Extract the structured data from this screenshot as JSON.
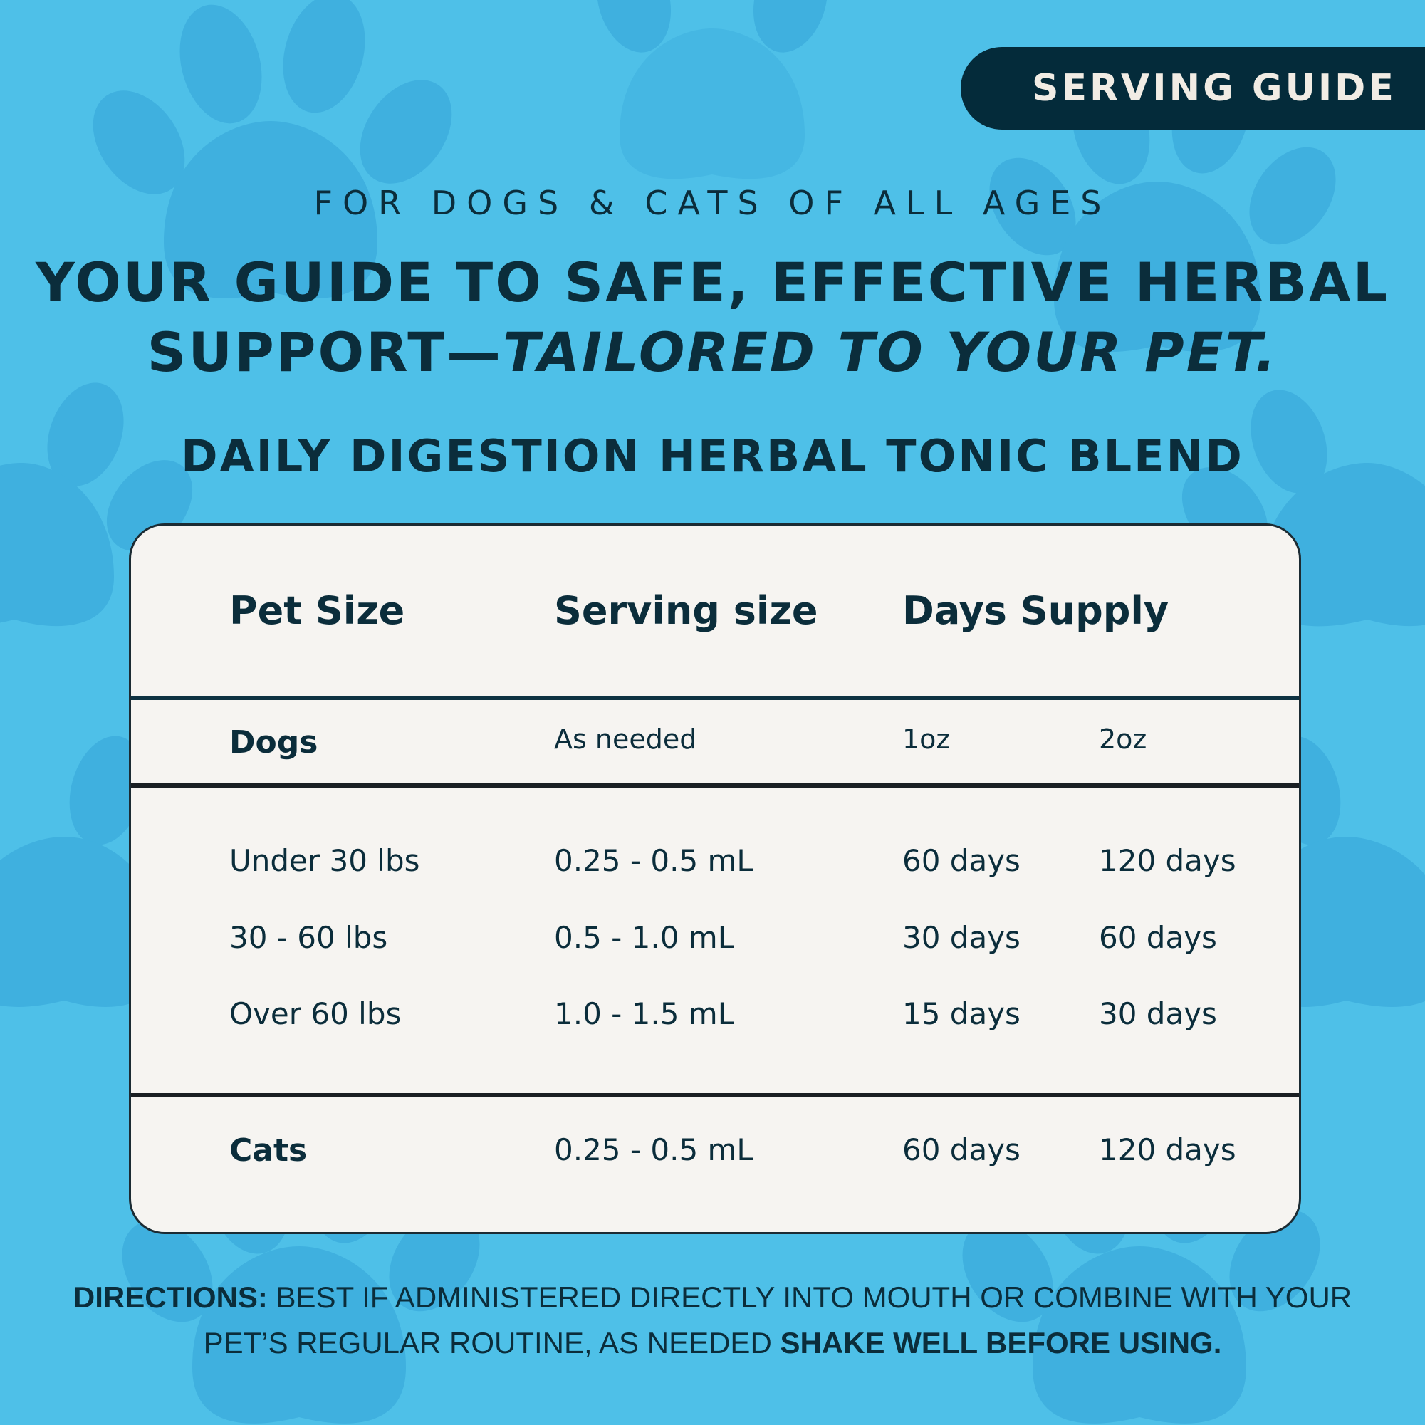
{
  "colors": {
    "background": "#4ec0e8",
    "paw": "#3fb0df",
    "badge": "#042b3a",
    "card": "#f6f4f1",
    "text": "#0b2d3b"
  },
  "badge": {
    "label": "SERVING GUIDE"
  },
  "eyebrow": "FOR DOGS & CATS OF ALL AGES",
  "headline": {
    "line1": "YOUR GUIDE TO SAFE, EFFECTIVE HERBAL",
    "line2_plain": "SUPPORT—",
    "line2_emphasis": "TAILORED TO YOUR PET."
  },
  "blend_name": "DAILY DIGESTION HERBAL TONIC BLEND",
  "table": {
    "headers": {
      "pet_size": "Pet Size",
      "serving_size": "Serving size",
      "days_supply": "Days Supply"
    },
    "dogs_row": {
      "label": "Dogs",
      "serving": "As needed",
      "size_1": "1oz",
      "size_2": "2oz"
    },
    "rows": [
      {
        "size": "Under 30 lbs",
        "serving": "0.25 - 0.5 mL",
        "days_1oz": "60 days",
        "days_2oz": "120 days"
      },
      {
        "size": "30 - 60 lbs",
        "serving": "0.5 - 1.0 mL",
        "days_1oz": "30 days",
        "days_2oz": "60 days"
      },
      {
        "size": "Over 60 lbs",
        "serving": "1.0 - 1.5 mL",
        "days_1oz": "15 days",
        "days_2oz": "30 days"
      }
    ],
    "cats_row": {
      "label": "Cats",
      "serving": "0.25 - 0.5 mL",
      "days_1oz": "60 days",
      "days_2oz": "120 days"
    }
  },
  "directions": {
    "label": "DIRECTIONS:",
    "text": " BEST IF ADMINISTERED DIRECTLY INTO MOUTH OR COMBINE WITH YOUR PET’S REGULAR ROUTINE, AS NEEDED ",
    "emphasis": "SHAKE WELL BEFORE USING."
  }
}
